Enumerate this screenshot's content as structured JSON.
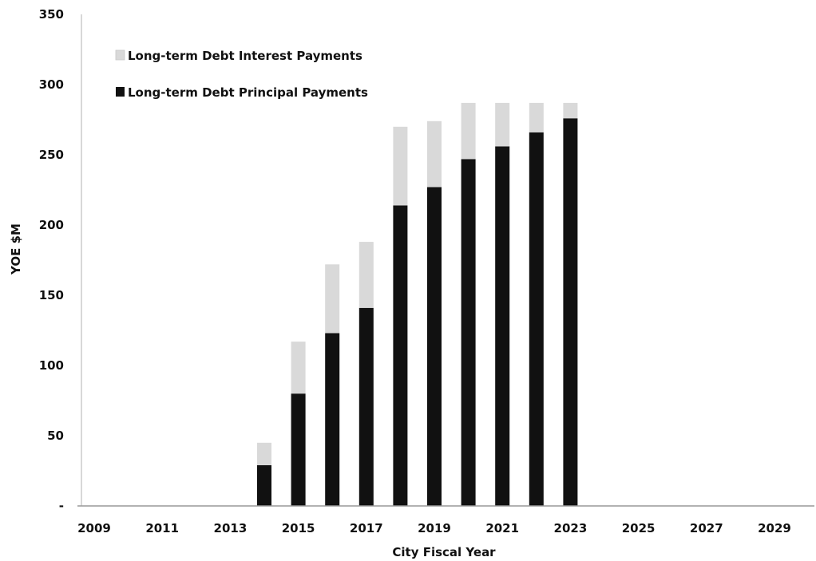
{
  "chart_data": {
    "type": "bar",
    "stacked": true,
    "xlabel": "City Fiscal Year",
    "ylabel": "YOE $M",
    "ylim": [
      0,
      350
    ],
    "yticks": [
      0,
      50,
      100,
      150,
      200,
      250,
      300,
      350
    ],
    "ytick_labels": [
      "-",
      "50",
      "100",
      "150",
      "200",
      "250",
      "300",
      "350"
    ],
    "categories": [
      "2009",
      "2010",
      "2011",
      "2012",
      "2013",
      "2014",
      "2015",
      "2016",
      "2017",
      "2018",
      "2019",
      "2020",
      "2021",
      "2022",
      "2023",
      "2024",
      "2025",
      "2026",
      "2027",
      "2028",
      "2029",
      "2030"
    ],
    "xtick_labels": [
      "2009",
      "2011",
      "2013",
      "2015",
      "2017",
      "2019",
      "2021",
      "2023",
      "2025",
      "2027",
      "2029"
    ],
    "legend_position": "top-left",
    "grid": false,
    "series": [
      {
        "name": "Long-term Debt Principal Payments",
        "color": "#111111",
        "values": [
          0,
          0,
          0,
          0,
          0,
          29,
          80,
          123,
          141,
          214,
          227,
          247,
          256,
          266,
          276,
          0,
          0,
          0,
          0,
          0,
          0,
          0
        ]
      },
      {
        "name": "Long-term Debt Interest Payments",
        "color": "#d9d9d9",
        "values": [
          0,
          0,
          0,
          0,
          0,
          16,
          37,
          49,
          47,
          56,
          47,
          40,
          31,
          21,
          11,
          0,
          0,
          0,
          0,
          0,
          0,
          0
        ]
      }
    ],
    "legend_order": [
      "Long-term Debt Interest Payments",
      "Long-term Debt Principal Payments"
    ]
  }
}
